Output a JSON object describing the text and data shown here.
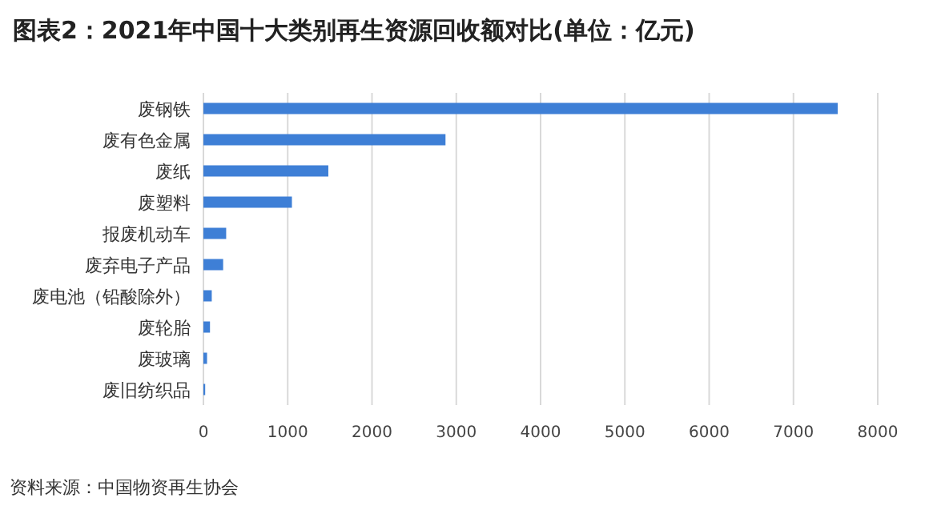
{
  "chart_data": {
    "type": "bar",
    "orientation": "horizontal",
    "title": "图表2：2021年中国十大类别再生资源回收额对比(单位：亿元)",
    "categories": [
      "废钢铁",
      "废有色金属",
      "废纸",
      "废塑料",
      "报废机动车",
      "废弃电子产品",
      "废电池（铅酸除外）",
      "废轮胎",
      "废玻璃",
      "废旧纺织品"
    ],
    "values": [
      7525,
      2872,
      1482,
      1050,
      270,
      234,
      99,
      78,
      43,
      21
    ],
    "color": "#3e7fd6",
    "xlim": [
      0,
      8000
    ],
    "xticks": [
      0,
      1000,
      2000,
      3000,
      4000,
      5000,
      6000,
      7000,
      8000
    ],
    "grid": "x",
    "annotations": [
      "资料来源：中国物资再生协会"
    ]
  }
}
